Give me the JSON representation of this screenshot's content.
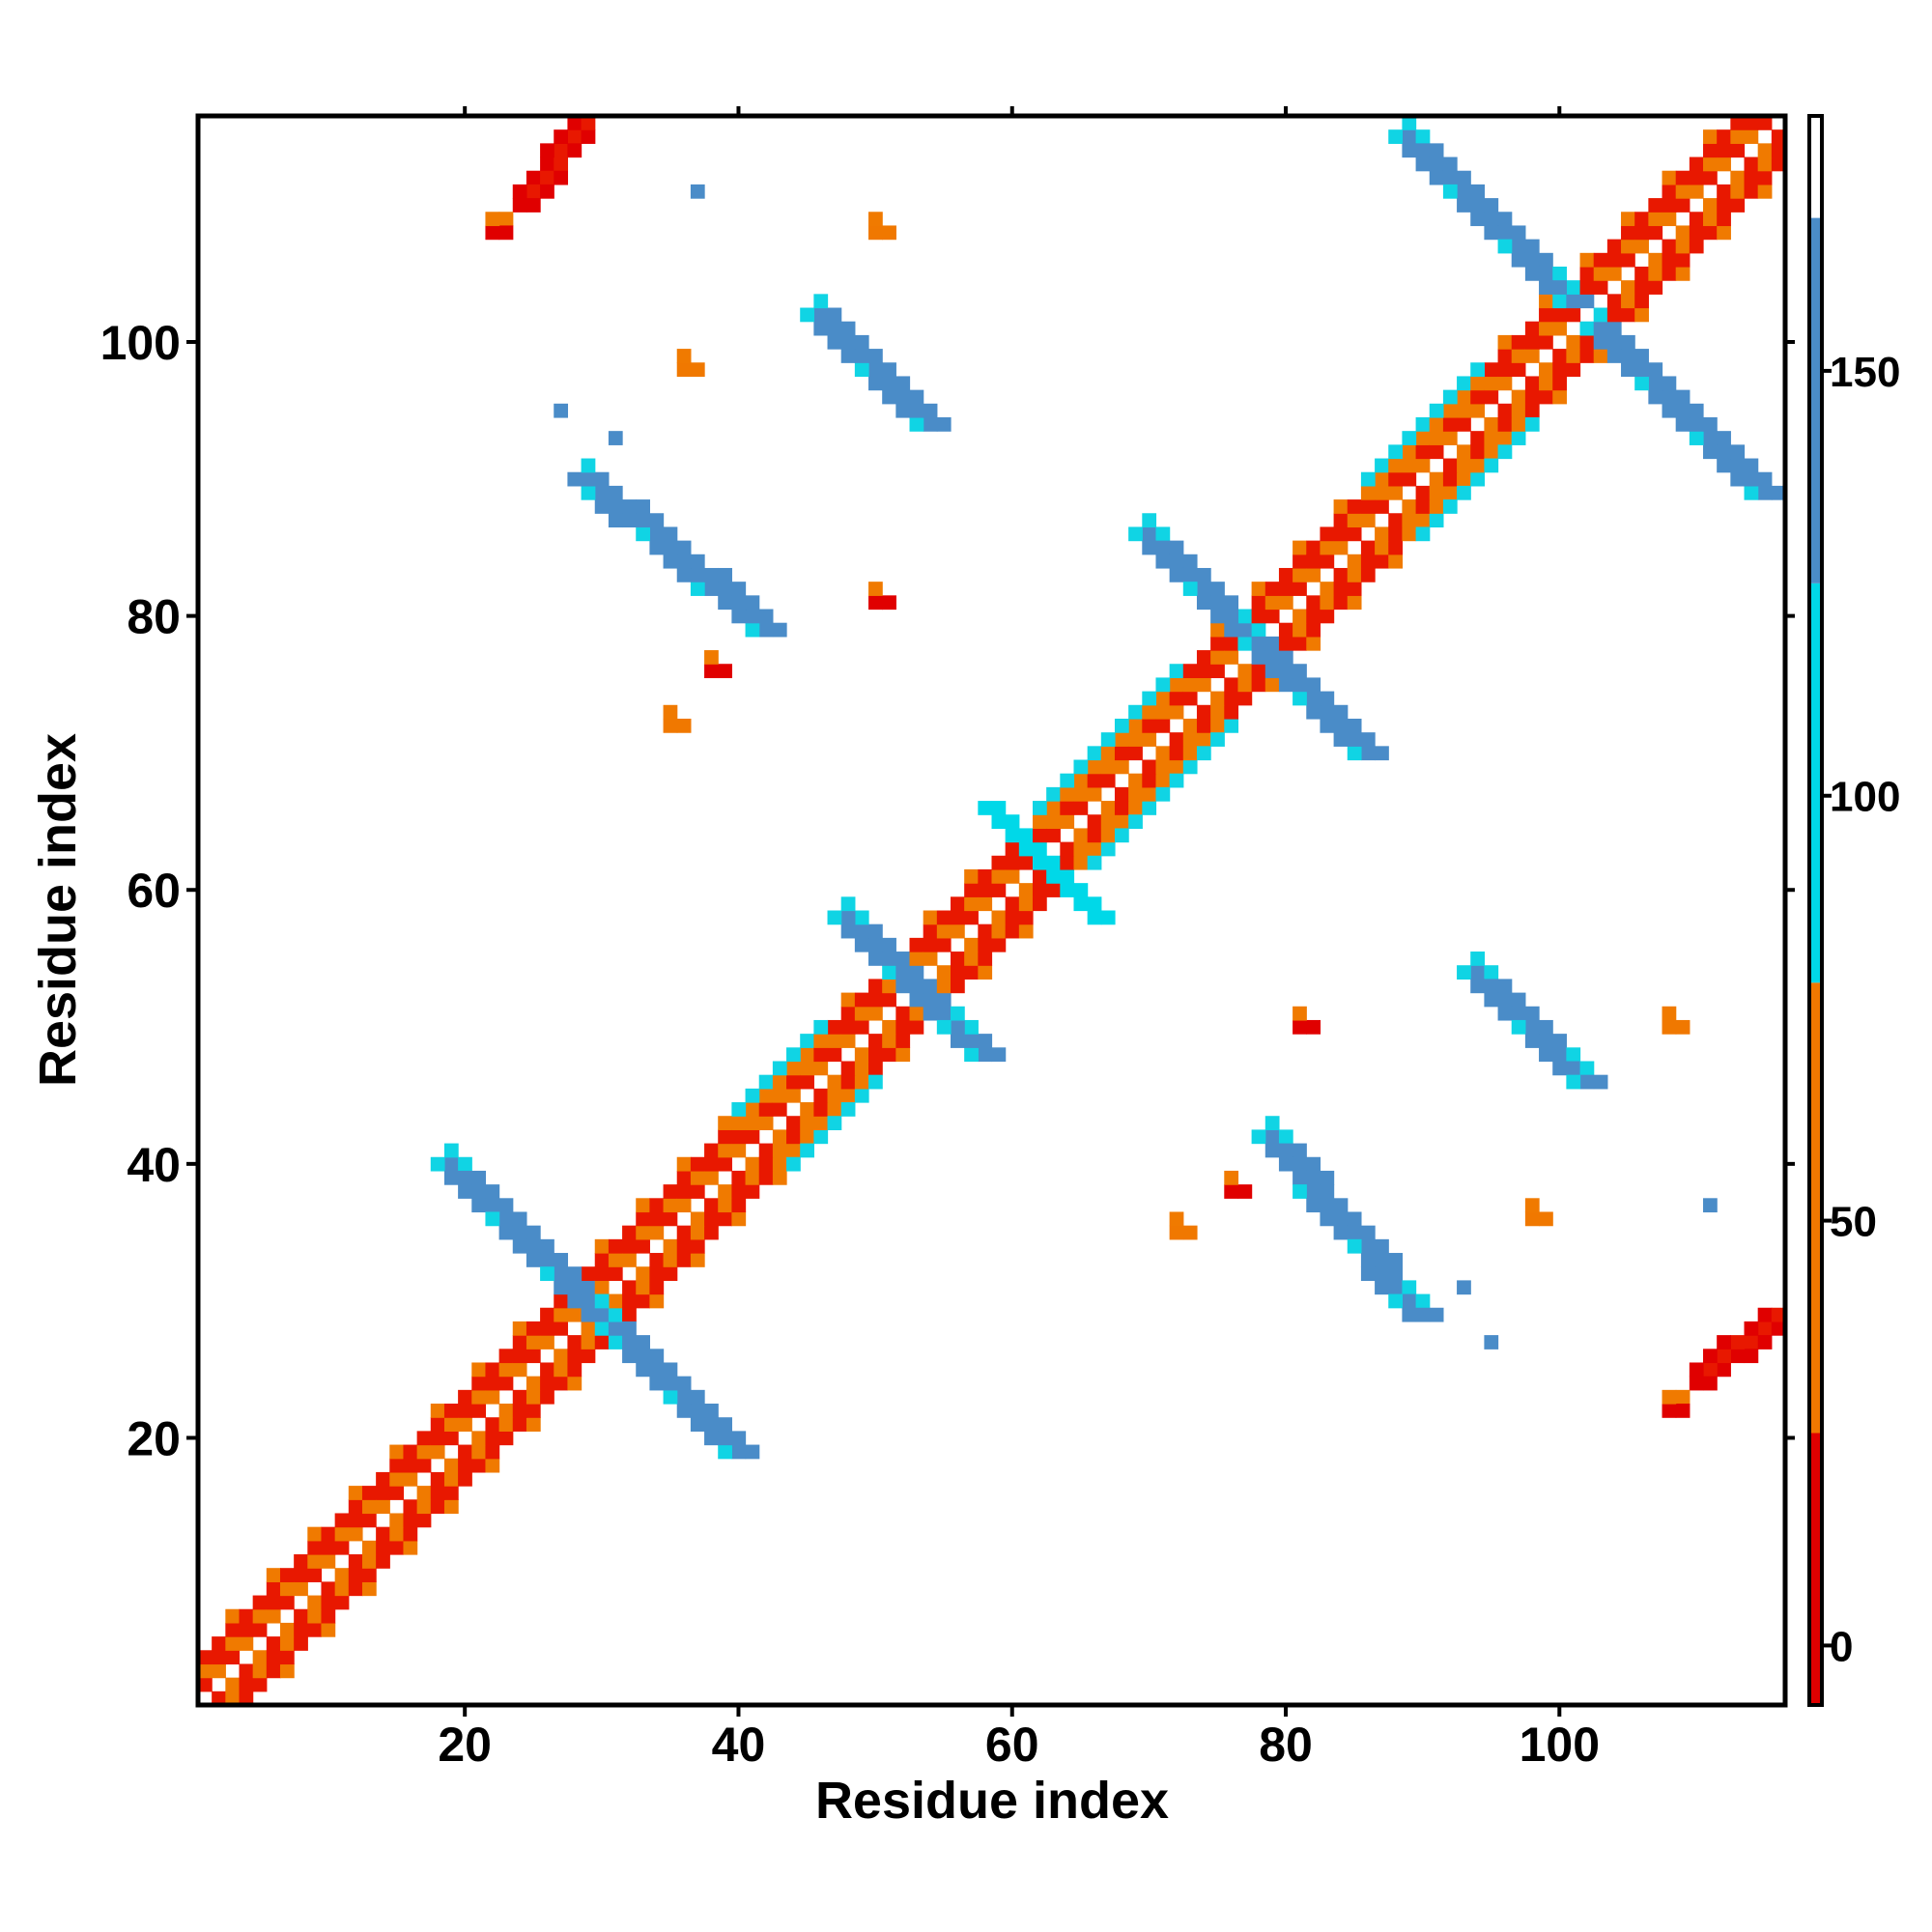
{
  "chart_data": {
    "type": "heatmap",
    "title": "",
    "xlabel": "Residue index",
    "ylabel": "Residue index",
    "xlim": [
      1,
      116
    ],
    "ylim": [
      1,
      116
    ],
    "xticks": [
      20,
      40,
      60,
      80,
      100
    ],
    "yticks": [
      20,
      40,
      60,
      80,
      100
    ],
    "colorbar": {
      "ticks": [
        0,
        50,
        100,
        150
      ],
      "range": [
        -7,
        180
      ],
      "bands": [
        {
          "from": -7,
          "to": 25,
          "color": "#e00000"
        },
        {
          "from": 25,
          "to": 78,
          "color": "#f07800"
        },
        {
          "from": 78,
          "to": 125,
          "color": "#00d8e8"
        },
        {
          "from": 125,
          "to": 168,
          "color": "#4a8cc8"
        },
        {
          "from": 168,
          "to": 180,
          "color": "#ffffff"
        }
      ]
    },
    "colors": {
      "red": "#e81800",
      "orange": "#f07a00",
      "cyan": "#10d4e4",
      "blue": "#4a8cc8"
    },
    "segments": [
      {
        "x0": 1,
        "y0": 1,
        "x1": 115,
        "y1": 115,
        "cls": "diagonal"
      },
      {
        "x0": 3,
        "y0": 1,
        "x1": 116,
        "y1": 114,
        "cls": "i+2"
      },
      {
        "x0": 1,
        "y0": 3,
        "x1": 114,
        "y1": 116,
        "cls": "i+2"
      },
      {
        "x0": 4,
        "y0": 1,
        "x1": 116,
        "y1": 113,
        "cls": "i+3"
      },
      {
        "x0": 1,
        "y0": 4,
        "x1": 113,
        "y1": 116,
        "cls": "i+3"
      },
      {
        "x0": 40,
        "y0": 19,
        "x1": 28,
        "y1": 31,
        "v": 160
      },
      {
        "x0": 19,
        "y0": 40,
        "x1": 31,
        "y1": 28,
        "v": 160
      },
      {
        "x0": 58,
        "y0": 48,
        "x1": 49,
        "y1": 57,
        "v": 155
      },
      {
        "x0": 48,
        "y0": 58,
        "x1": 57,
        "y1": 49,
        "v": 155
      },
      {
        "x0": 66,
        "y0": 58,
        "x1": 59,
        "y1": 65,
        "v": 115
      },
      {
        "x0": 58,
        "y0": 66,
        "x1": 65,
        "y1": 59,
        "v": 115
      },
      {
        "x0": 86,
        "y0": 70,
        "x1": 78,
        "y1": 78,
        "v": 160
      },
      {
        "x0": 70,
        "y0": 86,
        "x1": 78,
        "y1": 78,
        "v": 160
      },
      {
        "x0": 42,
        "y0": 79,
        "x1": 29,
        "y1": 90,
        "v": 160
      },
      {
        "x0": 79,
        "y0": 42,
        "x1": 90,
        "y1": 29,
        "v": 160
      },
      {
        "x0": 54,
        "y0": 94,
        "x1": 46,
        "y1": 102,
        "v": 160
      },
      {
        "x0": 94,
        "y0": 54,
        "x1": 102,
        "y1": 46,
        "v": 160
      },
      {
        "x0": 115,
        "y0": 89,
        "x1": 103,
        "y1": 101,
        "v": 160
      },
      {
        "x0": 89,
        "y0": 115,
        "x1": 101,
        "y1": 103,
        "v": 160
      },
      {
        "x0": 28,
        "y0": 115,
        "x1": 24,
        "y1": 110,
        "v": 15
      },
      {
        "x0": 115,
        "y0": 28,
        "x1": 110,
        "y1": 24,
        "v": 15
      }
    ],
    "spots": [
      {
        "x": 22,
        "y": 108,
        "v": 12
      },
      {
        "x": 108,
        "y": 22,
        "v": 12
      },
      {
        "x": 38,
        "y": 76,
        "v": 10
      },
      {
        "x": 76,
        "y": 38,
        "v": 10
      },
      {
        "x": 35,
        "y": 72,
        "v": 45
      },
      {
        "x": 72,
        "y": 35,
        "v": 45
      },
      {
        "x": 36,
        "y": 98,
        "v": 30
      },
      {
        "x": 98,
        "y": 36,
        "v": 30
      },
      {
        "x": 50,
        "y": 81,
        "v": 20
      },
      {
        "x": 81,
        "y": 50,
        "v": 20
      },
      {
        "x": 50,
        "y": 108,
        "v": 50
      },
      {
        "x": 108,
        "y": 50,
        "v": 50
      },
      {
        "x": 31,
        "y": 93,
        "v": 160
      },
      {
        "x": 93,
        "y": 31,
        "v": 160
      },
      {
        "x": 27,
        "y": 95,
        "v": 150
      },
      {
        "x": 95,
        "y": 27,
        "v": 150
      },
      {
        "x": 37,
        "y": 111,
        "v": 155
      },
      {
        "x": 111,
        "y": 37,
        "v": 155
      }
    ]
  }
}
